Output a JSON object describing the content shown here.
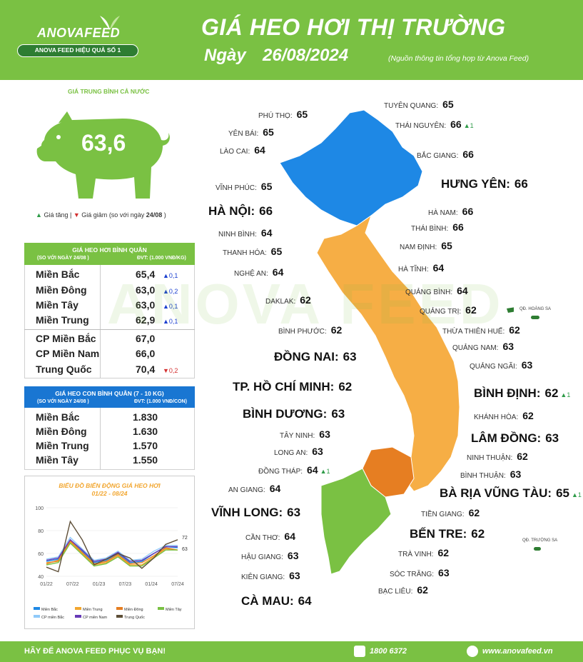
{
  "header": {
    "logo_text": "ANOVAFEED",
    "slogan": "ANOVA FEED HIỆU QUẢ SỐ 1",
    "title": "GIÁ HEO HƠI THỊ TRƯỜNG",
    "date_label": "Ngày",
    "date_value": "26/08/2024",
    "source": "(Nguồn thông tin tổng hợp từ Anova Feed)"
  },
  "national": {
    "label": "GIÁ TRUNG BÌNH CẢ NƯỚC",
    "value": "63,6",
    "legend_up": "Giá tăng",
    "legend_sep": "|",
    "legend_down": "Giá giảm",
    "legend_compare": "(so với ngày",
    "legend_date": "24/08",
    "legend_close": ")"
  },
  "avg_price": {
    "title": "GIÁ HEO HƠI BÌNH QUÂN",
    "compare": "(SO VỚI NGÀY  24/08 )",
    "unit": "ĐVT: (1.000 VNĐ/KG)",
    "rows": [
      {
        "name": "Miền Bắc",
        "value": "65,4",
        "change": "▲0,1",
        "dir": "up"
      },
      {
        "name": "Miền Đông",
        "value": "63,0",
        "change": "▲0,2",
        "dir": "up"
      },
      {
        "name": "Miền Tây",
        "value": "63,0",
        "change": "▲0,1",
        "dir": "up"
      },
      {
        "name": "Miền Trung",
        "value": "62,9",
        "change": "▲0,1",
        "dir": "up"
      },
      {
        "name": "CP Miền Bắc",
        "value": "67,0",
        "change": "",
        "dir": ""
      },
      {
        "name": "CP Miền Nam",
        "value": "66,0",
        "change": "",
        "dir": ""
      },
      {
        "name": "Trung Quốc",
        "value": "70,4",
        "change": "▼0,2",
        "dir": "down"
      }
    ]
  },
  "piglet_price": {
    "title": "GIÁ HEO CON BÌNH QUÂN (7 - 10 KG)",
    "compare": "(SO VỚI NGÀY  24/08 )",
    "unit": "ĐVT: (1.000 VNĐ/CON)",
    "rows": [
      {
        "name": "Miền Bắc",
        "value": "1.830"
      },
      {
        "name": "Miền Đông",
        "value": "1.630"
      },
      {
        "name": "Miền Trung",
        "value": "1.570"
      },
      {
        "name": "Miền Tây",
        "value": "1.550"
      }
    ]
  },
  "chart_data": {
    "type": "line",
    "title": "BIỂU ĐỒ BIẾN ĐỘNG GIÁ HEO HƠI",
    "subtitle": "01/22 - 08/24",
    "x": [
      "01/22",
      "04/22",
      "07/22",
      "10/22",
      "01/23",
      "04/23",
      "07/23",
      "10/23",
      "01/24",
      "04/24",
      "07/24",
      "08/24"
    ],
    "x_ticks": [
      "01/22",
      "07/22",
      "01/23",
      "07/23",
      "01/24",
      "07/24"
    ],
    "y_ticks": [
      "100",
      "80",
      "60",
      "40"
    ],
    "ylim": [
      40,
      100
    ],
    "end_labels": [
      "72",
      "63"
    ],
    "series": [
      {
        "name": "Miền Bắc",
        "color": "#1e88e5",
        "values": [
          53,
          55,
          72,
          62,
          52,
          54,
          60,
          52,
          53,
          60,
          66,
          65
        ]
      },
      {
        "name": "Miền Trung",
        "color": "#f2a62f",
        "values": [
          52,
          53,
          70,
          60,
          50,
          52,
          58,
          50,
          50,
          57,
          64,
          63
        ]
      },
      {
        "name": "Miền Đông",
        "color": "#e67e22",
        "values": [
          51,
          54,
          71,
          61,
          51,
          53,
          59,
          51,
          52,
          58,
          65,
          63
        ]
      },
      {
        "name": "Miền Tây",
        "color": "#7ac143",
        "values": [
          50,
          52,
          69,
          59,
          49,
          51,
          57,
          49,
          49,
          56,
          63,
          63
        ]
      },
      {
        "name": "CP miền Bắc",
        "color": "#90caf9",
        "values": [
          55,
          57,
          74,
          64,
          54,
          56,
          62,
          54,
          55,
          62,
          67,
          67
        ]
      },
      {
        "name": "CP miền Nam",
        "color": "#673ab7",
        "values": [
          54,
          56,
          72,
          63,
          53,
          55,
          61,
          53,
          54,
          60,
          66,
          66
        ]
      },
      {
        "name": "Trung Quốc",
        "color": "#5d4e37",
        "values": [
          48,
          44,
          88,
          72,
          50,
          55,
          60,
          56,
          47,
          56,
          68,
          72
        ]
      }
    ]
  },
  "map_labels": [
    {
      "name": "TUYÊN QUANG:",
      "value": "65",
      "change": ""
    },
    {
      "name": "PHÚ THỌ:",
      "value": "65",
      "change": ""
    },
    {
      "name": "THÁI NGUYÊN:",
      "value": "66",
      "change": "▲1"
    },
    {
      "name": "YÊN BÁI:",
      "value": "65",
      "change": ""
    },
    {
      "name": "LÀO CAI:",
      "value": "64",
      "change": ""
    },
    {
      "name": "BẮC GIANG:",
      "value": "66",
      "change": ""
    },
    {
      "name": "VĨNH PHÚC:",
      "value": "65",
      "change": ""
    },
    {
      "name": "HƯNG YÊN:",
      "value": "66",
      "change": ""
    },
    {
      "name": "HÀ NỘI:",
      "value": "66",
      "change": ""
    },
    {
      "name": "HÀ NAM:",
      "value": "66",
      "change": ""
    },
    {
      "name": "NINH BÌNH:",
      "value": "64",
      "change": ""
    },
    {
      "name": "THÁI BÌNH:",
      "value": "66",
      "change": ""
    },
    {
      "name": "THANH HÓA:",
      "value": "65",
      "change": ""
    },
    {
      "name": "NAM ĐỊNH:",
      "value": "65",
      "change": ""
    },
    {
      "name": "NGHỆ AN:",
      "value": "64",
      "change": ""
    },
    {
      "name": "HÀ TĨNH:",
      "value": "64",
      "change": ""
    },
    {
      "name": "QUẢNG BÌNH:",
      "value": "64",
      "change": ""
    },
    {
      "name": "DAKLAK:",
      "value": "62",
      "change": ""
    },
    {
      "name": "QUẢNG TRỊ:",
      "value": "62",
      "change": ""
    },
    {
      "name": "BÌNH PHƯỚC:",
      "value": "62",
      "change": ""
    },
    {
      "name": "THỪA THIÊN HUẾ:",
      "value": "62",
      "change": ""
    },
    {
      "name": "QUẢNG NAM:",
      "value": "63",
      "change": ""
    },
    {
      "name": "ĐỒNG NAI:",
      "value": "63",
      "change": ""
    },
    {
      "name": "QUẢNG NGÃI:",
      "value": "63",
      "change": ""
    },
    {
      "name": "TP. HỒ CHÍ MINH:",
      "value": "62",
      "change": ""
    },
    {
      "name": "BÌNH ĐỊNH:",
      "value": "62",
      "change": "▲1"
    },
    {
      "name": "BÌNH DƯƠNG:",
      "value": "63",
      "change": ""
    },
    {
      "name": "KHÁNH HÒA:",
      "value": "62",
      "change": ""
    },
    {
      "name": "TÂY NINH:",
      "value": "63",
      "change": ""
    },
    {
      "name": "LÂM ĐỒNG:",
      "value": "63",
      "change": ""
    },
    {
      "name": "LONG AN:",
      "value": "63",
      "change": ""
    },
    {
      "name": "NINH THUẬN:",
      "value": "62",
      "change": ""
    },
    {
      "name": "ĐỒNG THÁP:",
      "value": "64",
      "change": "▲1"
    },
    {
      "name": "BÌNH THUẬN:",
      "value": "63",
      "change": ""
    },
    {
      "name": "BÀ RỊA VŨNG TÀU:",
      "value": "65",
      "change": "▲1"
    },
    {
      "name": "AN GIANG:",
      "value": "64",
      "change": ""
    },
    {
      "name": "VĨNH LONG:",
      "value": "63",
      "change": ""
    },
    {
      "name": "TIỀN GIANG:",
      "value": "62",
      "change": ""
    },
    {
      "name": "BẾN TRE:",
      "value": "62",
      "change": ""
    },
    {
      "name": "CẦN THƠ:",
      "value": "64",
      "change": ""
    },
    {
      "name": "TRÀ VINH:",
      "value": "62",
      "change": ""
    },
    {
      "name": "HẬU GIANG:",
      "value": "63",
      "change": ""
    },
    {
      "name": "SÓC TRĂNG:",
      "value": "63",
      "change": ""
    },
    {
      "name": "KIÊN GIANG:",
      "value": "63",
      "change": ""
    },
    {
      "name": "BẠC LIÊU:",
      "value": "62",
      "change": ""
    },
    {
      "name": "CÀ MAU:",
      "value": "64",
      "change": ""
    }
  ],
  "islands": {
    "hoang_sa": "QĐ. HOÀNG SA",
    "truong_sa": "QĐ. TRƯỜNG SA"
  },
  "watermark": "ANOVA FEED",
  "footer": {
    "slogan": "HÃY ĐỂ ANOVA FEED PHỤC VỤ BẠN!",
    "phone": "1800 6372",
    "website": "www.anovafeed.vn"
  },
  "colors": {
    "brand_green": "#7ac143",
    "north_blue": "#1e88e5",
    "central_orange": "#f6ae45",
    "south_orange": "#e67e22",
    "mekong_green": "#7ac143",
    "piglet_head_blue": "#1976d2"
  }
}
